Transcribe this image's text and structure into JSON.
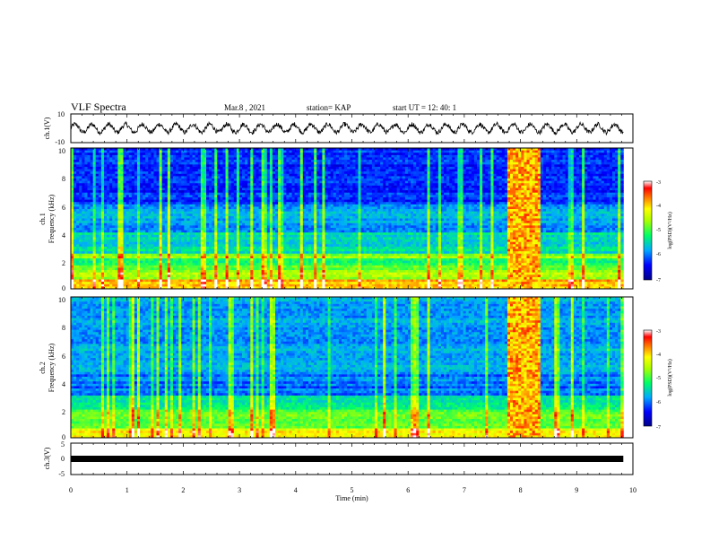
{
  "header": {
    "title": "VLF Spectra",
    "date": "Mar.8 , 2021",
    "station": "station= KAP",
    "start": "start UT =  12: 40: 1"
  },
  "chart_data": [
    {
      "type": "line",
      "id": "ch1-waveform",
      "ylabel": "ch.1(V)",
      "ylim": [
        -10,
        10
      ],
      "y_ticks": [
        "10",
        "-10"
      ],
      "xlim": [
        0,
        10
      ],
      "x_end": 9.83,
      "description_mean": 0,
      "oscillation_period_min": 0.3,
      "amplitude_v": 4,
      "color": "#000000"
    },
    {
      "type": "heatmap",
      "id": "ch1-spectrogram",
      "ylabel_top": "ch.1",
      "ylabel": "Frequency (kHz)",
      "ylim": [
        0,
        10
      ],
      "y_ticks": [
        "0",
        "2",
        "4",
        "6",
        "8",
        "10"
      ],
      "xlim": [
        0,
        10
      ],
      "x_end": 9.83,
      "burst_interval_min": [
        7.78,
        8.38
      ],
      "colorbar": {
        "label": "log(PSD)(V²/Hz)",
        "range": [
          -7,
          -3
        ],
        "ticks": [
          "-3",
          "-4",
          "-5",
          "-6",
          "-7"
        ]
      }
    },
    {
      "type": "heatmap",
      "id": "ch2-spectrogram",
      "ylabel_top": "ch.2",
      "ylabel": "Frequency (kHz)",
      "ylim": [
        0,
        10
      ],
      "y_ticks": [
        "0",
        "2",
        "4",
        "6",
        "8",
        "10"
      ],
      "xlim": [
        0,
        10
      ],
      "x_end": 9.83,
      "burst_interval_min": [
        7.78,
        8.38
      ],
      "colorbar": {
        "label": "log(PSD)(V²/Hz)",
        "range": [
          -7,
          -3
        ],
        "ticks": [
          "-3",
          "-4",
          "-5",
          "-6",
          "-7"
        ]
      }
    },
    {
      "type": "line",
      "id": "ch3-waveform",
      "ylabel": "ch.3(V)",
      "ylim": [
        -5,
        5
      ],
      "y_ticks": [
        "5",
        "0",
        "-5"
      ],
      "xlim": [
        0,
        10
      ],
      "x_end": 9.83,
      "level_v": 0,
      "color": "#000000"
    }
  ],
  "x_axis": {
    "label": "Time (min)",
    "ticks": [
      "0",
      "1",
      "2",
      "3",
      "4",
      "5",
      "6",
      "7",
      "8",
      "9",
      "10"
    ]
  }
}
